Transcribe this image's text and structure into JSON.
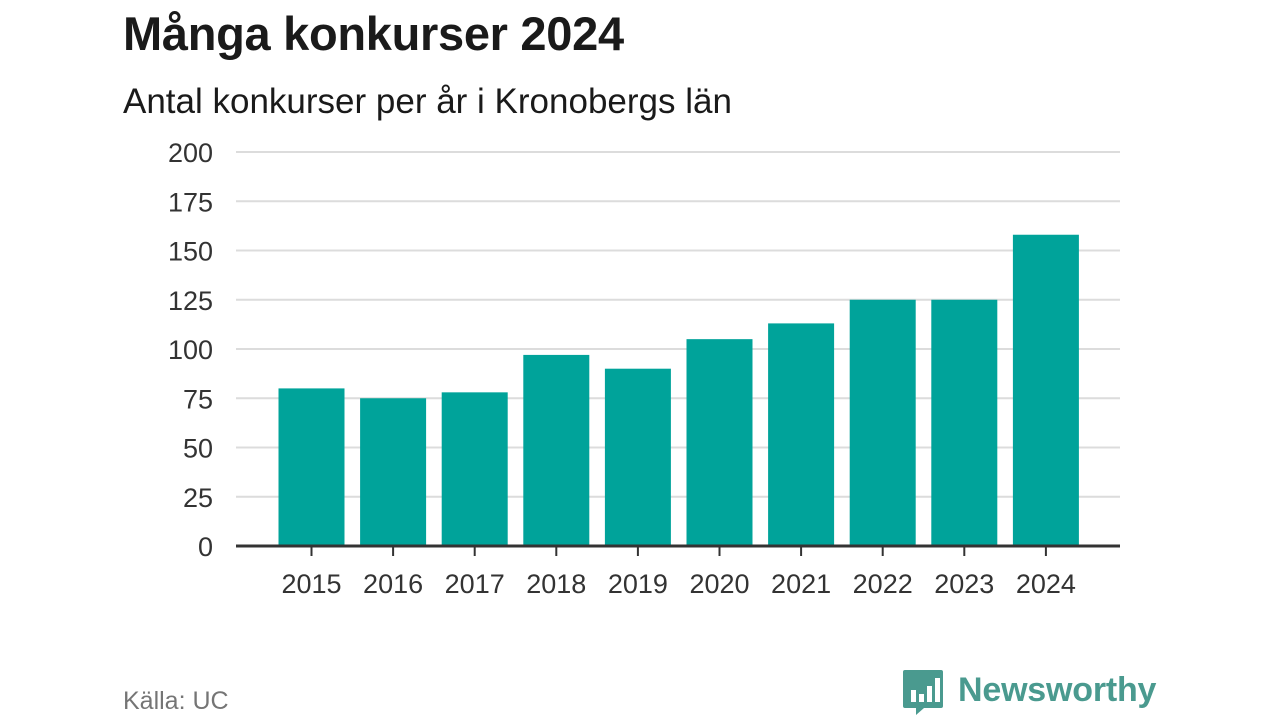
{
  "title": "Många konkurser 2024",
  "subtitle": "Antal konkurser per år i Kronobergs län",
  "source": "Källa: UC",
  "brand": {
    "name": "Newsworthy",
    "icon": "bar-chart-speech-bubble-icon"
  },
  "colors": {
    "bar": "#00a39a",
    "grid": "#dcdcdc",
    "axis": "#333333",
    "tick_text": "#333333",
    "brand": "#4a9a8f",
    "source": "#757575"
  },
  "chart_data": {
    "type": "bar",
    "categories": [
      "2015",
      "2016",
      "2017",
      "2018",
      "2019",
      "2020",
      "2021",
      "2022",
      "2023",
      "2024"
    ],
    "values": [
      80,
      75,
      78,
      97,
      90,
      105,
      113,
      125,
      125,
      158
    ],
    "ylim": [
      0,
      200
    ],
    "yticks": [
      0,
      25,
      50,
      75,
      100,
      125,
      150,
      175,
      200
    ],
    "grid": true,
    "xlabel": "",
    "ylabel": ""
  }
}
